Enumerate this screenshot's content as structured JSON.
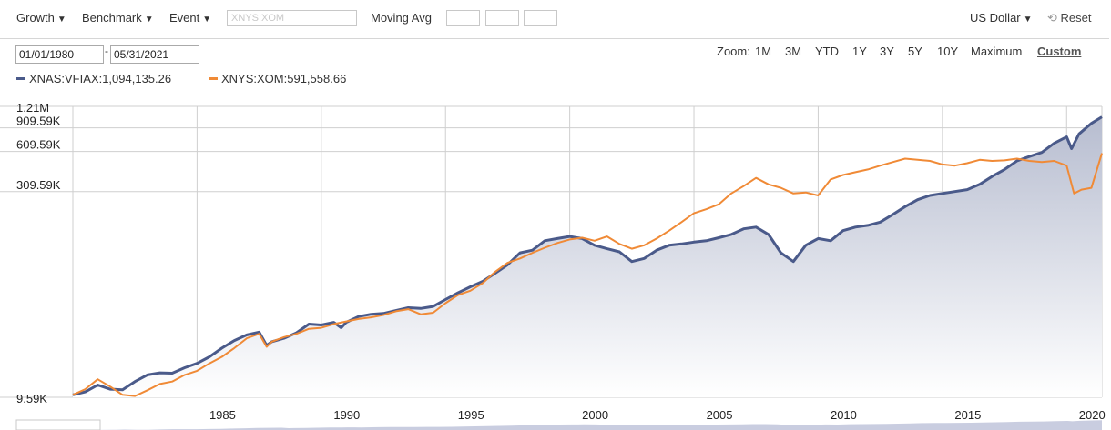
{
  "toolbar": {
    "growth_label": "Growth",
    "benchmark_label": "Benchmark",
    "event_label": "Event",
    "ticker_placeholder": "XNYS:XOM",
    "moving_avg_label": "Moving Avg",
    "currency_label": "US Dollar",
    "reset_label": "Reset"
  },
  "dates": {
    "start": "01/01/1980",
    "separator": "-",
    "end": "05/31/2021"
  },
  "zoom": {
    "label": "Zoom:",
    "options": [
      "1M",
      "3M",
      "YTD",
      "1Y",
      "3Y",
      "5Y",
      "10Y",
      "Maximum",
      "Custom"
    ],
    "active": "Custom"
  },
  "legend": [
    {
      "label": "XNAS:VFIAX:1,094,135.26",
      "color": "#4a5a8a"
    },
    {
      "label": "XNYS:XOM:591,558.66",
      "color": "#f08a36"
    }
  ],
  "colors": {
    "vfiax": "#4a5a8a",
    "xom": "#f08a36",
    "area_top": "#b7bdd0",
    "area_bottom": "#ffffff"
  },
  "chart_data": {
    "type": "line",
    "scale": "log",
    "ylim": [
      9590,
      1210000
    ],
    "xlim": [
      1980.0,
      2021.42
    ],
    "y_ticks": [
      {
        "value": 1210000,
        "label": "1.21M"
      },
      {
        "value": 909590,
        "label": "909.59K"
      },
      {
        "value": 609590,
        "label": "609.59K"
      },
      {
        "value": 309590,
        "label": "309.59K"
      },
      {
        "value": 9590,
        "label": "9.59K"
      }
    ],
    "x_ticks": [
      1985,
      1990,
      1995,
      2000,
      2005,
      2010,
      2015,
      2020
    ],
    "grid": true,
    "series": [
      {
        "name": "XNAS:VFIAX",
        "x": [
          1980.0,
          1980.5,
          1981.0,
          1981.5,
          1982.0,
          1982.5,
          1983.0,
          1983.5,
          1984.0,
          1984.5,
          1985.0,
          1985.5,
          1986.0,
          1986.5,
          1987.0,
          1987.5,
          1987.8,
          1988.0,
          1988.5,
          1989.0,
          1989.5,
          1990.0,
          1990.5,
          1990.8,
          1991.0,
          1991.5,
          1992.0,
          1992.5,
          1993.0,
          1993.5,
          1994.0,
          1994.5,
          1995.0,
          1995.5,
          1996.0,
          1996.5,
          1997.0,
          1997.5,
          1998.0,
          1998.5,
          1999.0,
          1999.5,
          2000.0,
          2000.5,
          2001.0,
          2001.5,
          2002.0,
          2002.5,
          2003.0,
          2003.5,
          2004.0,
          2004.5,
          2005.0,
          2005.5,
          2006.0,
          2006.5,
          2007.0,
          2007.5,
          2008.0,
          2008.5,
          2009.0,
          2009.5,
          2010.0,
          2010.5,
          2011.0,
          2011.5,
          2012.0,
          2012.5,
          2013.0,
          2013.5,
          2014.0,
          2014.5,
          2015.0,
          2015.5,
          2016.0,
          2016.5,
          2017.0,
          2017.5,
          2018.0,
          2018.5,
          2019.0,
          2019.5,
          2020.0,
          2020.2,
          2020.5,
          2021.0,
          2021.42
        ],
        "values": [
          10000,
          10500,
          11800,
          11000,
          10900,
          12500,
          14000,
          14500,
          14400,
          15800,
          17000,
          19000,
          22000,
          25000,
          27500,
          28800,
          23000,
          24500,
          26000,
          28500,
          33000,
          32500,
          34000,
          31000,
          34000,
          37500,
          39000,
          39500,
          41500,
          43500,
          43000,
          44500,
          50000,
          56000,
          62000,
          68000,
          78000,
          90000,
          110000,
          115000,
          135000,
          140000,
          145000,
          140000,
          125000,
          118000,
          112000,
          95000,
          100000,
          115000,
          125000,
          128000,
          132000,
          135000,
          142000,
          150000,
          165000,
          170000,
          150000,
          110000,
          95000,
          125000,
          140000,
          135000,
          160000,
          170000,
          175000,
          185000,
          210000,
          240000,
          270000,
          290000,
          300000,
          310000,
          320000,
          350000,
          400000,
          450000,
          520000,
          560000,
          600000,
          700000,
          780000,
          640000,
          820000,
          980000,
          1094135
        ]
      },
      {
        "name": "XNYS:XOM",
        "x": [
          1980.0,
          1980.5,
          1981.0,
          1981.5,
          1982.0,
          1982.5,
          1983.0,
          1983.5,
          1984.0,
          1984.5,
          1985.0,
          1985.5,
          1986.0,
          1986.5,
          1987.0,
          1987.5,
          1987.8,
          1988.0,
          1988.5,
          1989.0,
          1989.5,
          1990.0,
          1990.5,
          1991.0,
          1991.5,
          1992.0,
          1992.5,
          1993.0,
          1993.5,
          1994.0,
          1994.5,
          1995.0,
          1995.5,
          1996.0,
          1996.5,
          1997.0,
          1997.5,
          1998.0,
          1998.5,
          1999.0,
          1999.5,
          2000.0,
          2000.5,
          2001.0,
          2001.5,
          2002.0,
          2002.5,
          2003.0,
          2003.5,
          2004.0,
          2004.5,
          2005.0,
          2005.5,
          2006.0,
          2006.5,
          2007.0,
          2007.5,
          2008.0,
          2008.5,
          2009.0,
          2009.5,
          2010.0,
          2010.5,
          2011.0,
          2011.5,
          2012.0,
          2012.5,
          2013.0,
          2013.5,
          2014.0,
          2014.5,
          2015.0,
          2015.5,
          2016.0,
          2016.5,
          2017.0,
          2017.5,
          2018.0,
          2018.5,
          2019.0,
          2019.5,
          2020.0,
          2020.3,
          2020.6,
          2021.0,
          2021.42
        ],
        "values": [
          10000,
          11000,
          13000,
          11500,
          10000,
          9800,
          10800,
          12000,
          12500,
          14000,
          15000,
          17000,
          19000,
          22000,
          26000,
          28000,
          22500,
          24500,
          26500,
          28000,
          30500,
          31000,
          33000,
          34500,
          36000,
          37000,
          38500,
          41000,
          42500,
          39000,
          40000,
          47000,
          54000,
          58000,
          66000,
          80000,
          93000,
          100000,
          110000,
          120000,
          130000,
          138000,
          142000,
          135000,
          145000,
          128000,
          118000,
          125000,
          140000,
          160000,
          185000,
          215000,
          230000,
          250000,
          300000,
          340000,
          390000,
          350000,
          330000,
          300000,
          305000,
          290000,
          380000,
          410000,
          430000,
          450000,
          480000,
          510000,
          540000,
          530000,
          520000,
          490000,
          480000,
          500000,
          530000,
          520000,
          525000,
          540000,
          520000,
          510000,
          520000,
          480000,
          300000,
          320000,
          330000,
          591559
        ]
      }
    ]
  }
}
